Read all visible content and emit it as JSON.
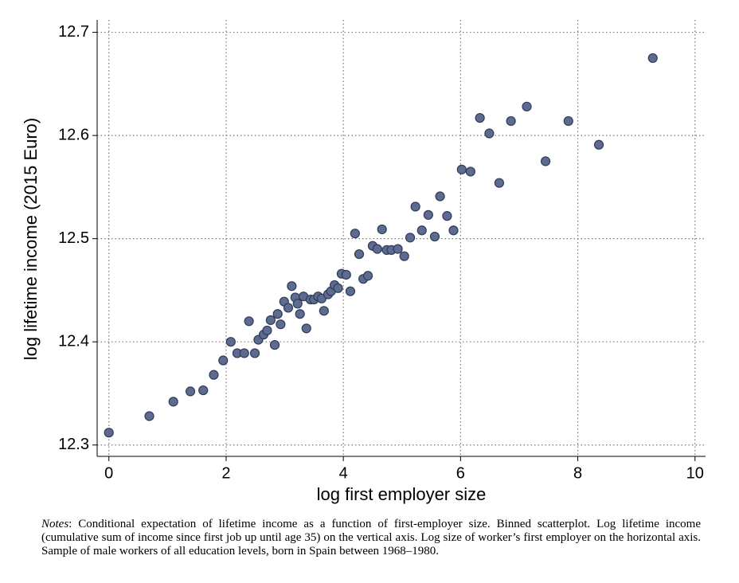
{
  "chart_data": {
    "type": "scatter",
    "x_label": "log first employer size",
    "y_label": "log lifetime income (2015 Euro)",
    "x": [
      0,
      0.69,
      1.1,
      1.39,
      1.61,
      1.79,
      1.95,
      2.08,
      2.19,
      2.31,
      2.39,
      2.49,
      2.55,
      2.64,
      2.7,
      2.76,
      2.83,
      2.88,
      2.93,
      2.99,
      3.06,
      3.12,
      3.18,
      3.22,
      3.26,
      3.32,
      3.37,
      3.44,
      3.5,
      3.57,
      3.63,
      3.67,
      3.74,
      3.79,
      3.85,
      3.91,
      3.97,
      4.05,
      4.12,
      4.2,
      4.27,
      4.34,
      4.42,
      4.5,
      4.58,
      4.66,
      4.74,
      4.82,
      4.93,
      5.04,
      5.14,
      5.23,
      5.34,
      5.45,
      5.56,
      5.65,
      5.77,
      5.88,
      6.02,
      6.17,
      6.33,
      6.49,
      6.66,
      6.86,
      7.13,
      7.45,
      7.84,
      8.36,
      9.28
    ],
    "values": [
      12.312,
      12.328,
      12.342,
      12.352,
      12.353,
      12.368,
      12.382,
      12.4,
      12.389,
      12.389,
      12.42,
      12.389,
      12.402,
      12.407,
      12.411,
      12.421,
      12.397,
      12.427,
      12.417,
      12.439,
      12.433,
      12.454,
      12.443,
      12.437,
      12.427,
      12.444,
      12.413,
      12.441,
      12.441,
      12.444,
      12.442,
      12.43,
      12.446,
      12.449,
      12.455,
      12.452,
      12.466,
      12.465,
      12.449,
      12.505,
      12.485,
      12.461,
      12.464,
      12.493,
      12.49,
      12.509,
      12.489,
      12.489,
      12.49,
      12.483,
      12.501,
      12.531,
      12.508,
      12.523,
      12.502,
      12.541,
      12.522,
      12.508,
      12.567,
      12.565,
      12.617,
      12.602,
      12.554,
      12.614,
      12.628,
      12.575,
      12.614,
      12.591,
      12.675
    ],
    "color": "#5d6b8f",
    "xlim": [
      -0.2,
      10.18
    ],
    "ylim": [
      12.289,
      12.712
    ],
    "xticks": [
      0,
      2,
      4,
      6,
      8,
      10
    ],
    "yticks": [
      12.3,
      12.4,
      12.5,
      12.6,
      12.7
    ],
    "grid": true
  },
  "notes": {
    "label": "Notes",
    "text": ": Conditional expectation of lifetime income as a function of first-employer size. Binned scatterplot. Log lifetime income (cumulative sum of income since first job up until age 35) on the vertical axis. Log size of worker’s first employer on the horizontal axis. Sample of male workers of all education levels, born in Spain between 1968–1980."
  }
}
